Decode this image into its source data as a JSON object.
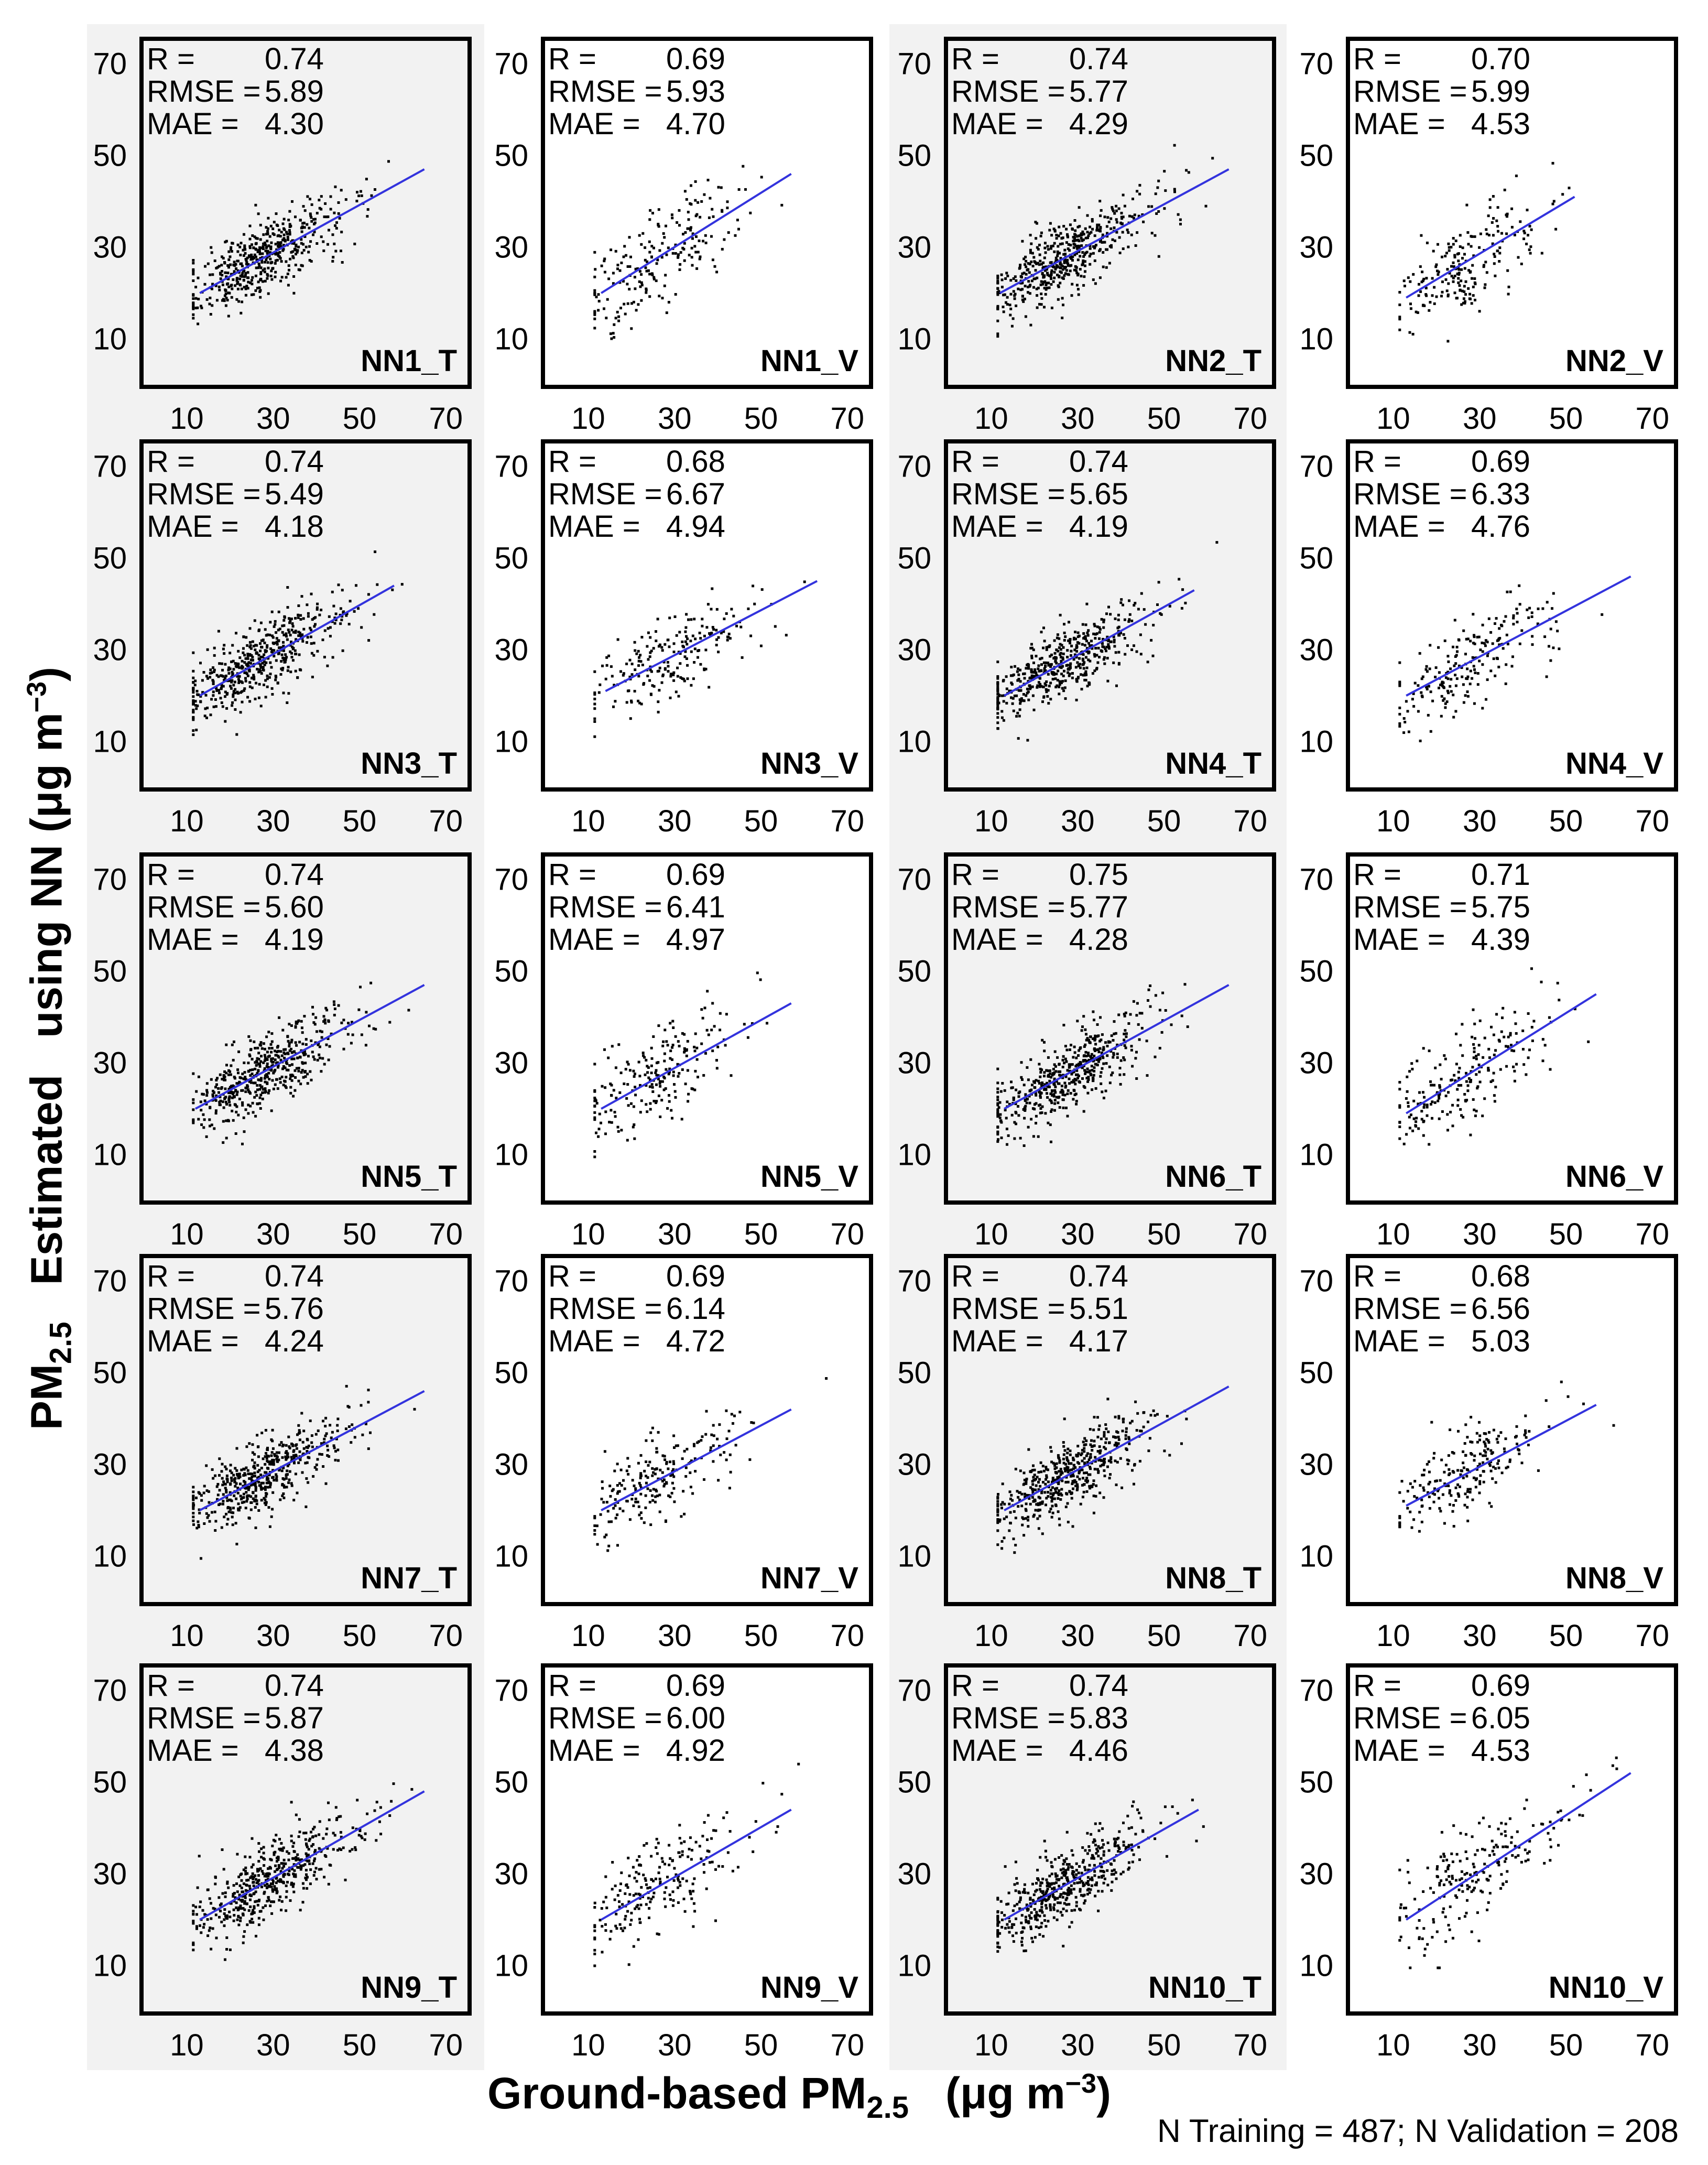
{
  "y_axis_label": {
    "line1_prefix": "PM",
    "line1_sub": "2.5",
    "line2": "Estimated",
    "line3": "using  NN (μg m",
    "line3_sup": "−3",
    "line3_end": ")"
  },
  "x_axis_label": {
    "prefix": "Ground-based PM",
    "sub": "2.5",
    "units_prefix": "(μg m",
    "units_sup": "−3",
    "units_end": ")"
  },
  "sample_note": "N Training = 487; N Validation = 208",
  "colors": {
    "training_panel_bg": "#f2f2f2",
    "validation_panel_bg": "#ffffff",
    "fit_line": "#3333dd",
    "points": "#000000"
  },
  "chart_data": [
    {
      "type": "scatter",
      "label": "NN1_T",
      "set": "training",
      "n": 487,
      "stats": {
        "R": "0.74",
        "RMSE": "5.89",
        "MAE": "4.30"
      },
      "fit": {
        "x": [
          13,
          65
        ],
        "y": [
          20,
          47
        ]
      },
      "xlim": [
        0,
        75
      ],
      "ylim": [
        0,
        75
      ],
      "xticks": [
        10,
        30,
        50,
        70
      ],
      "yticks": [
        10,
        30,
        50,
        70
      ]
    },
    {
      "type": "scatter",
      "label": "NN1_V",
      "set": "validation",
      "n": 208,
      "stats": {
        "R": "0.69",
        "RMSE": "5.93",
        "MAE": "4.70"
      },
      "fit": {
        "x": [
          13,
          57
        ],
        "y": [
          20,
          46
        ]
      },
      "xlim": [
        0,
        75
      ],
      "ylim": [
        0,
        75
      ],
      "xticks": [
        10,
        30,
        50,
        70
      ],
      "yticks": [
        10,
        30,
        50,
        70
      ]
    },
    {
      "type": "scatter",
      "label": "NN2_T",
      "set": "training",
      "n": 487,
      "stats": {
        "R": "0.74",
        "RMSE": "5.77",
        "MAE": "4.29"
      },
      "fit": {
        "x": [
          12,
          65
        ],
        "y": [
          20,
          47
        ]
      },
      "xlim": [
        0,
        75
      ],
      "ylim": [
        0,
        75
      ],
      "xticks": [
        10,
        30,
        50,
        70
      ],
      "yticks": [
        10,
        30,
        50,
        70
      ]
    },
    {
      "type": "scatter",
      "label": "NN2_V",
      "set": "validation",
      "n": 208,
      "stats": {
        "R": "0.70",
        "RMSE": "5.99",
        "MAE": "4.53"
      },
      "fit": {
        "x": [
          13,
          52
        ],
        "y": [
          19,
          41
        ]
      },
      "xlim": [
        0,
        75
      ],
      "ylim": [
        0,
        75
      ],
      "xticks": [
        10,
        30,
        50,
        70
      ],
      "yticks": [
        10,
        30,
        50,
        70
      ]
    },
    {
      "type": "scatter",
      "label": "NN3_T",
      "set": "training",
      "n": 487,
      "stats": {
        "R": "0.74",
        "RMSE": "5.49",
        "MAE": "4.18"
      },
      "fit": {
        "x": [
          13,
          58
        ],
        "y": [
          20,
          44
        ]
      },
      "xlim": [
        0,
        75
      ],
      "ylim": [
        0,
        75
      ],
      "xticks": [
        10,
        30,
        50,
        70
      ],
      "yticks": [
        10,
        30,
        50,
        70
      ]
    },
    {
      "type": "scatter",
      "label": "NN3_V",
      "set": "validation",
      "n": 208,
      "stats": {
        "R": "0.68",
        "RMSE": "6.67",
        "MAE": "4.94"
      },
      "fit": {
        "x": [
          14,
          63
        ],
        "y": [
          21,
          45
        ]
      },
      "xlim": [
        0,
        75
      ],
      "ylim": [
        0,
        75
      ],
      "xticks": [
        10,
        30,
        50,
        70
      ],
      "yticks": [
        10,
        30,
        50,
        70
      ]
    },
    {
      "type": "scatter",
      "label": "NN4_T",
      "set": "training",
      "n": 487,
      "stats": {
        "R": "0.74",
        "RMSE": "5.65",
        "MAE": "4.19"
      },
      "fit": {
        "x": [
          13,
          57
        ],
        "y": [
          20,
          43
        ]
      },
      "xlim": [
        0,
        75
      ],
      "ylim": [
        0,
        75
      ],
      "xticks": [
        10,
        30,
        50,
        70
      ],
      "yticks": [
        10,
        30,
        50,
        70
      ]
    },
    {
      "type": "scatter",
      "label": "NN4_V",
      "set": "validation",
      "n": 208,
      "stats": {
        "R": "0.69",
        "RMSE": "6.33",
        "MAE": "4.76"
      },
      "fit": {
        "x": [
          13,
          65
        ],
        "y": [
          20,
          46
        ]
      },
      "xlim": [
        0,
        75
      ],
      "ylim": [
        0,
        75
      ],
      "xticks": [
        10,
        30,
        50,
        70
      ],
      "yticks": [
        10,
        30,
        50,
        70
      ]
    },
    {
      "type": "scatter",
      "label": "NN5_T",
      "set": "training",
      "n": 487,
      "stats": {
        "R": "0.74",
        "RMSE": "5.60",
        "MAE": "4.19"
      },
      "fit": {
        "x": [
          12,
          65
        ],
        "y": [
          20,
          47
        ]
      },
      "xlim": [
        0,
        75
      ],
      "ylim": [
        0,
        75
      ],
      "xticks": [
        10,
        30,
        50,
        70
      ],
      "yticks": [
        10,
        30,
        50,
        70
      ]
    },
    {
      "type": "scatter",
      "label": "NN5_V",
      "set": "validation",
      "n": 208,
      "stats": {
        "R": "0.69",
        "RMSE": "6.41",
        "MAE": "4.97"
      },
      "fit": {
        "x": [
          13,
          57
        ],
        "y": [
          20,
          43
        ]
      },
      "xlim": [
        0,
        75
      ],
      "ylim": [
        0,
        75
      ],
      "xticks": [
        10,
        30,
        50,
        70
      ],
      "yticks": [
        10,
        30,
        50,
        70
      ]
    },
    {
      "type": "scatter",
      "label": "NN6_T",
      "set": "training",
      "n": 487,
      "stats": {
        "R": "0.75",
        "RMSE": "5.77",
        "MAE": "4.28"
      },
      "fit": {
        "x": [
          13,
          65
        ],
        "y": [
          20,
          47
        ]
      },
      "xlim": [
        0,
        75
      ],
      "ylim": [
        0,
        75
      ],
      "xticks": [
        10,
        30,
        50,
        70
      ],
      "yticks": [
        10,
        30,
        50,
        70
      ]
    },
    {
      "type": "scatter",
      "label": "NN6_V",
      "set": "validation",
      "n": 208,
      "stats": {
        "R": "0.71",
        "RMSE": "5.75",
        "MAE": "4.39"
      },
      "fit": {
        "x": [
          13,
          57
        ],
        "y": [
          19,
          45
        ]
      },
      "xlim": [
        0,
        75
      ],
      "ylim": [
        0,
        75
      ],
      "xticks": [
        10,
        30,
        50,
        70
      ],
      "yticks": [
        10,
        30,
        50,
        70
      ]
    },
    {
      "type": "scatter",
      "label": "NN7_T",
      "set": "training",
      "n": 487,
      "stats": {
        "R": "0.74",
        "RMSE": "5.76",
        "MAE": "4.24"
      },
      "fit": {
        "x": [
          13,
          65
        ],
        "y": [
          20,
          46
        ]
      },
      "xlim": [
        0,
        75
      ],
      "ylim": [
        0,
        75
      ],
      "xticks": [
        10,
        30,
        50,
        70
      ],
      "yticks": [
        10,
        30,
        50,
        70
      ]
    },
    {
      "type": "scatter",
      "label": "NN7_V",
      "set": "validation",
      "n": 208,
      "stats": {
        "R": "0.69",
        "RMSE": "6.14",
        "MAE": "4.72"
      },
      "fit": {
        "x": [
          13,
          57
        ],
        "y": [
          20,
          42
        ]
      },
      "xlim": [
        0,
        75
      ],
      "ylim": [
        0,
        75
      ],
      "xticks": [
        10,
        30,
        50,
        70
      ],
      "yticks": [
        10,
        30,
        50,
        70
      ]
    },
    {
      "type": "scatter",
      "label": "NN8_T",
      "set": "training",
      "n": 487,
      "stats": {
        "R": "0.74",
        "RMSE": "5.51",
        "MAE": "4.17"
      },
      "fit": {
        "x": [
          13,
          65
        ],
        "y": [
          20,
          47
        ]
      },
      "xlim": [
        0,
        75
      ],
      "ylim": [
        0,
        75
      ],
      "xticks": [
        10,
        30,
        50,
        70
      ],
      "yticks": [
        10,
        30,
        50,
        70
      ]
    },
    {
      "type": "scatter",
      "label": "NN8_V",
      "set": "validation",
      "n": 208,
      "stats": {
        "R": "0.68",
        "RMSE": "6.56",
        "MAE": "5.03"
      },
      "fit": {
        "x": [
          13,
          57
        ],
        "y": [
          21,
          43
        ]
      },
      "xlim": [
        0,
        75
      ],
      "ylim": [
        0,
        75
      ],
      "xticks": [
        10,
        30,
        50,
        70
      ],
      "yticks": [
        10,
        30,
        50,
        70
      ]
    },
    {
      "type": "scatter",
      "label": "NN9_T",
      "set": "training",
      "n": 487,
      "stats": {
        "R": "0.74",
        "RMSE": "5.87",
        "MAE": "4.38"
      },
      "fit": {
        "x": [
          13,
          65
        ],
        "y": [
          20,
          48
        ]
      },
      "xlim": [
        0,
        75
      ],
      "ylim": [
        0,
        75
      ],
      "xticks": [
        10,
        30,
        50,
        70
      ],
      "yticks": [
        10,
        30,
        50,
        70
      ]
    },
    {
      "type": "scatter",
      "label": "NN9_V",
      "set": "validation",
      "n": 208,
      "stats": {
        "R": "0.69",
        "RMSE": "6.00",
        "MAE": "4.92"
      },
      "fit": {
        "x": [
          13,
          57
        ],
        "y": [
          20,
          44
        ]
      },
      "xlim": [
        0,
        75
      ],
      "ylim": [
        0,
        75
      ],
      "xticks": [
        10,
        30,
        50,
        70
      ],
      "yticks": [
        10,
        30,
        50,
        70
      ]
    },
    {
      "type": "scatter",
      "label": "NN10_T",
      "set": "training",
      "n": 487,
      "stats": {
        "R": "0.74",
        "RMSE": "5.83",
        "MAE": "4.46"
      },
      "fit": {
        "x": [
          13,
          58
        ],
        "y": [
          20,
          44
        ]
      },
      "xlim": [
        0,
        75
      ],
      "ylim": [
        0,
        75
      ],
      "xticks": [
        10,
        30,
        50,
        70
      ],
      "yticks": [
        10,
        30,
        50,
        70
      ]
    },
    {
      "type": "scatter",
      "label": "NN10_V",
      "set": "validation",
      "n": 208,
      "stats": {
        "R": "0.69",
        "RMSE": "6.05",
        "MAE": "4.53"
      },
      "fit": {
        "x": [
          13,
          65
        ],
        "y": [
          20,
          52
        ]
      },
      "xlim": [
        0,
        75
      ],
      "ylim": [
        0,
        75
      ],
      "xticks": [
        10,
        30,
        50,
        70
      ],
      "yticks": [
        10,
        30,
        50,
        70
      ]
    }
  ]
}
